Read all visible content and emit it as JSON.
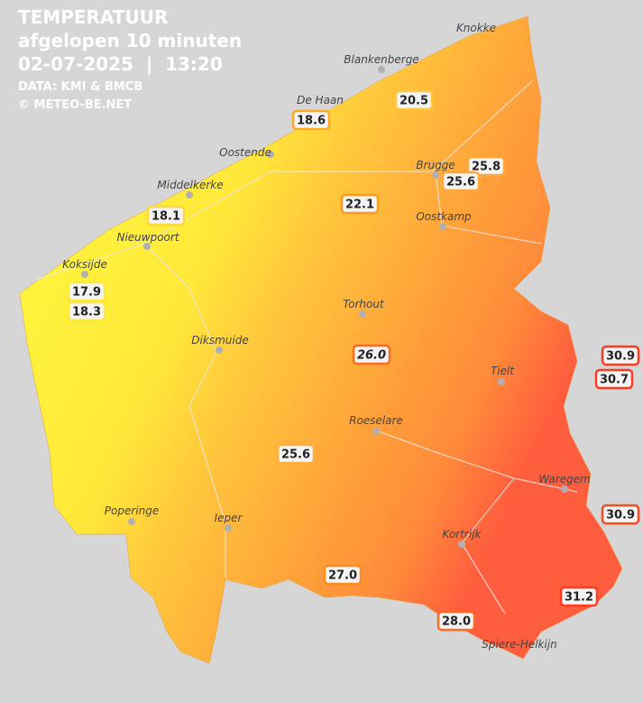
{
  "header": {
    "title": "TEMPERATUUR",
    "subtitle": "afgelopen 10 minuten",
    "datetime": "02-07-2025  |  13:20",
    "source": "DATA: KMI & BMCB",
    "copyright": "© METEO-BE.NET"
  },
  "places": [
    {
      "name": "Knokke"
    },
    {
      "name": "Blankenberge"
    },
    {
      "name": "De Haan"
    },
    {
      "name": "Oostende"
    },
    {
      "name": "Middelkerke"
    },
    {
      "name": "Nieuwpoort"
    },
    {
      "name": "Koksijde"
    },
    {
      "name": "Brugge"
    },
    {
      "name": "Oostkamp"
    },
    {
      "name": "Torhout"
    },
    {
      "name": "Diksmuide"
    },
    {
      "name": "Tielt"
    },
    {
      "name": "Roeselare"
    },
    {
      "name": "Waregem"
    },
    {
      "name": "Poperinge"
    },
    {
      "name": "Ieper"
    },
    {
      "name": "Kortrijk"
    },
    {
      "name": "Spiere-Helkijn"
    }
  ],
  "stations": [
    {
      "value": "20.5"
    },
    {
      "value": "18.6"
    },
    {
      "value": "25.8"
    },
    {
      "value": "25.6"
    },
    {
      "value": "22.1"
    },
    {
      "value": "18.1"
    },
    {
      "value": "17.9"
    },
    {
      "value": "18.3"
    },
    {
      "value": "26.0"
    },
    {
      "value": "30.9"
    },
    {
      "value": "30.7"
    },
    {
      "value": "25.6"
    },
    {
      "value": "30.9"
    },
    {
      "value": "27.0"
    },
    {
      "value": "31.2"
    },
    {
      "value": "28.0"
    }
  ]
}
